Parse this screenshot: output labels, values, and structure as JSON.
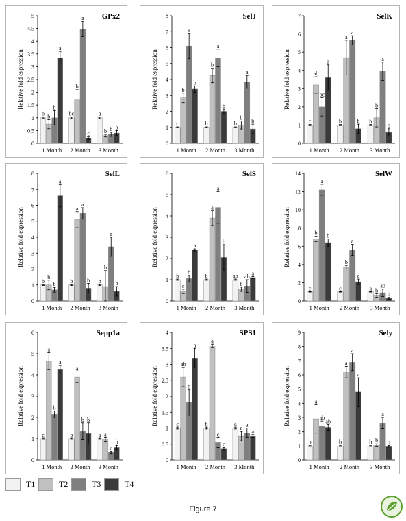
{
  "figure_caption": "Figure 7",
  "legend": {
    "items": [
      {
        "label": "T1",
        "color": "#f2f2f2"
      },
      {
        "label": "T2",
        "color": "#c0c0c0"
      },
      {
        "label": "T3",
        "color": "#7f7f7f"
      },
      {
        "label": "T4",
        "color": "#3a3a3a"
      }
    ]
  },
  "logo": {
    "icon": "leaf-badge-icon",
    "color": "#5aa02c"
  },
  "chart_data": [
    {
      "type": "bar",
      "title": "GPx2",
      "ylabel": "Relative fold expression",
      "categories": [
        "1 Month",
        "2 Month",
        "3 Month"
      ],
      "ylim": [
        0,
        5
      ],
      "yticks": [
        "0",
        "0.5",
        "1",
        "1.5",
        "2",
        "2.5",
        "3",
        "3.5",
        "4",
        "4.5",
        "5"
      ],
      "series": [
        {
          "name": "T1",
          "values": [
            1.0,
            1.0,
            1.0
          ],
          "errors": [
            0.03,
            0.03,
            0.03
          ],
          "letters": [
            "b",
            "bc",
            "a"
          ]
        },
        {
          "name": "T2",
          "values": [
            0.75,
            1.7,
            0.3
          ],
          "errors": [
            0.18,
            0.4,
            0.05
          ],
          "letters": [
            "b",
            "b",
            "b"
          ]
        },
        {
          "name": "T3",
          "values": [
            1.0,
            4.48,
            0.35
          ],
          "errors": [
            0.28,
            0.3,
            0.08
          ],
          "letters": [
            "b",
            "a",
            "b"
          ]
        },
        {
          "name": "T4",
          "values": [
            3.35,
            0.2,
            0.4
          ],
          "errors": [
            0.25,
            0.05,
            0.1
          ],
          "letters": [
            "a",
            "c",
            "b"
          ]
        }
      ]
    },
    {
      "type": "bar",
      "title": "SelJ",
      "ylabel": "Relative fold expression",
      "categories": [
        "1 Month",
        "2 Month",
        "3 Month"
      ],
      "ylim": [
        0,
        8
      ],
      "yticks": [
        "0",
        "1",
        "2",
        "3",
        "4",
        "5",
        "6",
        "7",
        "8"
      ],
      "series": [
        {
          "name": "T1",
          "values": [
            1.0,
            1.0,
            1.0
          ],
          "errors": [
            0.03,
            0.03,
            0.03
          ],
          "letters": [
            "c",
            "b",
            "b"
          ]
        },
        {
          "name": "T2",
          "values": [
            2.85,
            4.25,
            1.15
          ],
          "errors": [
            0.3,
            0.45,
            0.25
          ],
          "letters": [
            "b",
            "b",
            "b"
          ]
        },
        {
          "name": "T3",
          "values": [
            6.1,
            5.35,
            3.85
          ],
          "errors": [
            0.8,
            0.55,
            0.4
          ],
          "letters": [
            "a",
            "a",
            "a"
          ]
        },
        {
          "name": "T4",
          "values": [
            3.4,
            2.0,
            0.9
          ],
          "errors": [
            0.2,
            0.15,
            0.3
          ],
          "letters": [
            "b",
            "b",
            "b"
          ]
        }
      ]
    },
    {
      "type": "bar",
      "title": "SelK",
      "ylabel": "Relative fold expression",
      "categories": [
        "1 Month",
        "2 Month",
        "3 Month"
      ],
      "ylim": [
        0,
        7
      ],
      "yticks": [
        "0",
        "1",
        "2",
        "3",
        "4",
        "5",
        "6",
        "7"
      ],
      "series": [
        {
          "name": "T1",
          "values": [
            1.0,
            1.0,
            1.0
          ],
          "errors": [
            0.03,
            0.03,
            0.03
          ],
          "letters": [
            "c",
            "b",
            "b"
          ]
        },
        {
          "name": "T2",
          "values": [
            3.2,
            4.7,
            1.4
          ],
          "errors": [
            0.45,
            0.95,
            0.5
          ],
          "letters": [
            "ab",
            "a",
            "b"
          ]
        },
        {
          "name": "T3",
          "values": [
            2.0,
            5.65,
            3.95
          ],
          "errors": [
            0.5,
            0.25,
            0.5
          ],
          "letters": [
            "bc",
            "a",
            "a"
          ]
        },
        {
          "name": "T4",
          "values": [
            3.6,
            0.8,
            0.6
          ],
          "errors": [
            0.7,
            0.25,
            0.2
          ],
          "letters": [
            "a",
            "b",
            "b"
          ]
        }
      ]
    },
    {
      "type": "bar",
      "title": "SelL",
      "ylabel": "Relative fold expression",
      "categories": [
        "1 Month",
        "2 Month",
        "3 Month"
      ],
      "ylim": [
        0,
        8
      ],
      "yticks": [
        "0",
        "1",
        "2",
        "3",
        "4",
        "5",
        "6",
        "7",
        "8"
      ],
      "series": [
        {
          "name": "T1",
          "values": [
            1.0,
            1.0,
            1.0
          ],
          "errors": [
            0.03,
            0.03,
            0.03
          ],
          "letters": [
            "b",
            "b",
            "b"
          ]
        },
        {
          "name": "T2",
          "values": [
            1.0,
            5.1,
            0.9
          ],
          "errors": [
            0.3,
            0.5,
            1.0
          ],
          "letters": [
            "b",
            "a",
            "b"
          ]
        },
        {
          "name": "T3",
          "values": [
            0.7,
            5.5,
            3.4
          ],
          "errors": [
            0.15,
            0.35,
            0.6
          ],
          "letters": [
            "b",
            "a",
            "a"
          ]
        },
        {
          "name": "T4",
          "values": [
            6.6,
            0.8,
            0.6
          ],
          "errors": [
            0.7,
            0.3,
            0.3
          ],
          "letters": [
            "a",
            "b",
            "b"
          ]
        }
      ]
    },
    {
      "type": "bar",
      "title": "SelS",
      "ylabel": "Relative fold expression",
      "categories": [
        "1 Month",
        "2 Month",
        "3 Month"
      ],
      "ylim": [
        0,
        6
      ],
      "yticks": [
        "0",
        "1",
        "2",
        "3",
        "4",
        "5",
        "6"
      ],
      "series": [
        {
          "name": "T1",
          "values": [
            1.0,
            1.0,
            1.0
          ],
          "errors": [
            0.03,
            0.03,
            0.03
          ],
          "letters": [
            "b",
            "b",
            "ab"
          ]
        },
        {
          "name": "T2",
          "values": [
            0.45,
            3.9,
            0.55
          ],
          "errors": [
            0.1,
            0.35,
            0.1
          ],
          "letters": [
            "c",
            "a",
            "b"
          ]
        },
        {
          "name": "T3",
          "values": [
            1.05,
            4.4,
            0.7
          ],
          "errors": [
            0.15,
            0.75,
            0.3
          ],
          "letters": [
            "b",
            "a",
            "ab"
          ]
        },
        {
          "name": "T4",
          "values": [
            2.4,
            2.05,
            1.1
          ],
          "errors": [
            0.05,
            0.6,
            0.05
          ],
          "letters": [
            "a",
            "b",
            "a"
          ]
        }
      ]
    },
    {
      "type": "bar",
      "title": "SelW",
      "ylabel": "Relative fold expression",
      "categories": [
        "1 Month",
        "2 Month",
        "3 Month"
      ],
      "ylim": [
        0,
        14
      ],
      "yticks": [
        "0",
        "2",
        "4",
        "6",
        "8",
        "10",
        "12",
        "14"
      ],
      "series": [
        {
          "name": "T1",
          "values": [
            1.0,
            1.0,
            1.0
          ],
          "errors": [
            0.03,
            0.03,
            0.03
          ],
          "letters": [
            "c",
            "c",
            "a"
          ]
        },
        {
          "name": "T2",
          "values": [
            6.8,
            3.7,
            0.6
          ],
          "errors": [
            0.3,
            0.2,
            0.2
          ],
          "letters": [
            "b",
            "b",
            "b"
          ]
        },
        {
          "name": "T3",
          "values": [
            12.2,
            5.6,
            0.9
          ],
          "errors": [
            0.6,
            0.6,
            0.4
          ],
          "letters": [
            "a",
            "a",
            "ab"
          ]
        },
        {
          "name": "T4",
          "values": [
            6.4,
            2.1,
            0.3
          ],
          "errors": [
            0.4,
            0.3,
            0.1
          ],
          "letters": [
            "b",
            "c",
            "b"
          ]
        }
      ]
    },
    {
      "type": "bar",
      "title": "Sepp1a",
      "ylabel": "Relative fold expression",
      "categories": [
        "1 Month",
        "2 Month",
        "3 Month"
      ],
      "ylim": [
        0,
        6
      ],
      "yticks": [
        "0",
        "1",
        "2",
        "3",
        "4",
        "5",
        "6"
      ],
      "series": [
        {
          "name": "T1",
          "values": [
            1.0,
            1.0,
            1.0
          ],
          "errors": [
            0.03,
            0.03,
            0.03
          ],
          "letters": [
            "c",
            "b",
            "a"
          ]
        },
        {
          "name": "T2",
          "values": [
            4.65,
            3.9,
            0.95
          ],
          "errors": [
            0.4,
            0.25,
            0.1
          ],
          "letters": [
            "a",
            "a",
            "a"
          ]
        },
        {
          "name": "T3",
          "values": [
            2.15,
            1.35,
            0.35
          ],
          "errors": [
            0.15,
            0.4,
            0.05
          ],
          "letters": [
            "b",
            "b",
            "c"
          ]
        },
        {
          "name": "T4",
          "values": [
            4.25,
            1.25,
            0.6
          ],
          "errors": [
            0.2,
            0.5,
            0.1
          ],
          "letters": [
            "a",
            "b",
            "b"
          ]
        }
      ]
    },
    {
      "type": "bar",
      "title": "SPS1",
      "ylabel": "Relative fold expression",
      "categories": [
        "1 Month",
        "2 Month",
        "3 Month"
      ],
      "ylim": [
        0,
        4
      ],
      "yticks": [
        "0",
        "0.5",
        "1",
        "1.5",
        "2",
        "2.5",
        "3",
        "3.5",
        "4"
      ],
      "series": [
        {
          "name": "T1",
          "values": [
            1.0,
            1.0,
            1.0
          ],
          "errors": [
            0.03,
            0.03,
            0.03
          ],
          "letters": [
            "c",
            "b",
            "a"
          ]
        },
        {
          "name": "T2",
          "values": [
            2.6,
            3.58,
            0.75
          ],
          "errors": [
            0.3,
            0.05,
            0.15
          ],
          "letters": [
            "ab",
            "a",
            "a"
          ]
        },
        {
          "name": "T3",
          "values": [
            1.8,
            0.55,
            0.85
          ],
          "errors": [
            0.4,
            0.15,
            0.15
          ],
          "letters": [
            "b",
            "c",
            "a"
          ]
        },
        {
          "name": "T4",
          "values": [
            3.2,
            0.35,
            0.75
          ],
          "errors": [
            0.3,
            0.05,
            0.05
          ],
          "letters": [
            "a",
            "c",
            "a"
          ]
        }
      ]
    },
    {
      "type": "bar",
      "title": "Sely",
      "ylabel": "Relative fold expression",
      "categories": [
        "1 Month",
        "2 Month",
        "3 Month"
      ],
      "ylim": [
        0,
        9
      ],
      "yticks": [
        "0",
        "1",
        "2",
        "3",
        "4",
        "5",
        "6",
        "7",
        "8",
        "9"
      ],
      "series": [
        {
          "name": "T1",
          "values": [
            1.0,
            1.0,
            1.0
          ],
          "errors": [
            0.03,
            0.03,
            0.03
          ],
          "letters": [
            "b",
            "b",
            "b"
          ]
        },
        {
          "name": "T2",
          "values": [
            2.9,
            6.2,
            1.05
          ],
          "errors": [
            1.0,
            0.4,
            0.1
          ],
          "letters": [
            "a",
            "a",
            "b"
          ]
        },
        {
          "name": "T3",
          "values": [
            2.4,
            6.9,
            2.6
          ],
          "errors": [
            0.35,
            0.6,
            0.4
          ],
          "letters": [
            "ab",
            "a",
            "a"
          ]
        },
        {
          "name": "T4",
          "values": [
            2.3,
            4.8,
            0.95
          ],
          "errors": [
            0.2,
            1.0,
            0.1
          ],
          "letters": [
            "ab",
            "a",
            "b"
          ]
        }
      ]
    }
  ]
}
